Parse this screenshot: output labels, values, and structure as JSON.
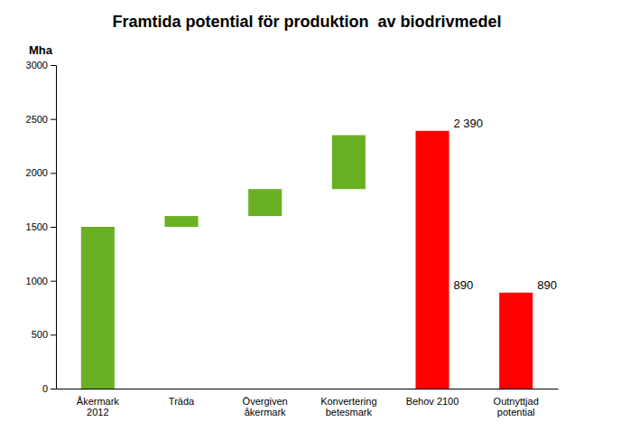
{
  "chart_data": {
    "type": "bar",
    "title": "Framtida potential för produktion  av biodrivmedel",
    "ylabel": "Mha",
    "categories": [
      "Åkermark\n2012",
      "Träda",
      "Övergiven\nåkermark",
      "Konvertering\nbetesmark",
      "Behov 2100",
      "Outnyttjad\npotential"
    ],
    "series": [
      {
        "type": "waterfall",
        "color": "#6ab023",
        "values": [
          1500,
          100,
          250,
          500,
          null,
          null
        ]
      },
      {
        "type": "bar",
        "color": "#ff0000",
        "values": [
          null,
          null,
          null,
          null,
          2390,
          890
        ]
      }
    ],
    "annotations": [
      {
        "text": "2 390",
        "x": 4,
        "y": 2390
      },
      {
        "text": "890",
        "x": 4,
        "y": 890
      },
      {
        "text": "890",
        "x": 5,
        "y": 890
      }
    ],
    "ylim": [
      0,
      3000
    ],
    "yticks": [
      0,
      500,
      1000,
      1500,
      2000,
      2500,
      3000
    ],
    "grid": false
  }
}
